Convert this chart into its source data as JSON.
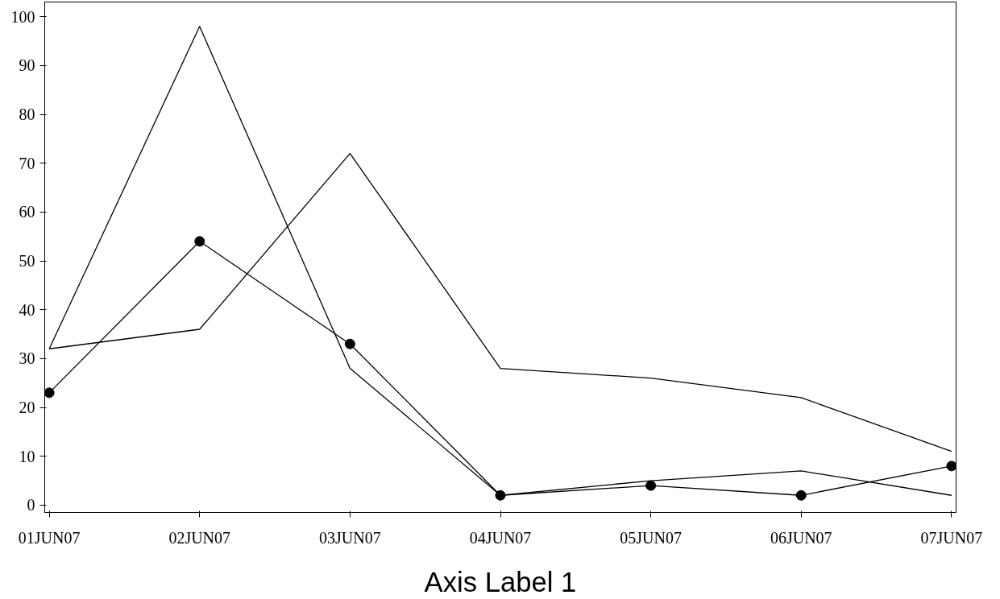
{
  "chart_data": {
    "type": "line",
    "xlabel": "Axis Label 1",
    "categories": [
      "01JUN07",
      "02JUN07",
      "03JUN07",
      "04JUN07",
      "05JUN07",
      "06JUN07",
      "07JUN07"
    ],
    "ylim": [
      -1.5,
      103
    ],
    "yticks": [
      0,
      10,
      20,
      30,
      40,
      50,
      60,
      70,
      80,
      90,
      100
    ],
    "grid": false,
    "series": [
      {
        "color": "#000000",
        "values": [
          32,
          98,
          28,
          2,
          5,
          7,
          2
        ],
        "marker": "none"
      },
      {
        "color": "#000000",
        "values": [
          32,
          36,
          72,
          28,
          26,
          22,
          11
        ],
        "marker": "none"
      },
      {
        "color": "#000000",
        "values": [
          23,
          54,
          33,
          2,
          4,
          2,
          8
        ],
        "marker": "circle"
      }
    ]
  }
}
